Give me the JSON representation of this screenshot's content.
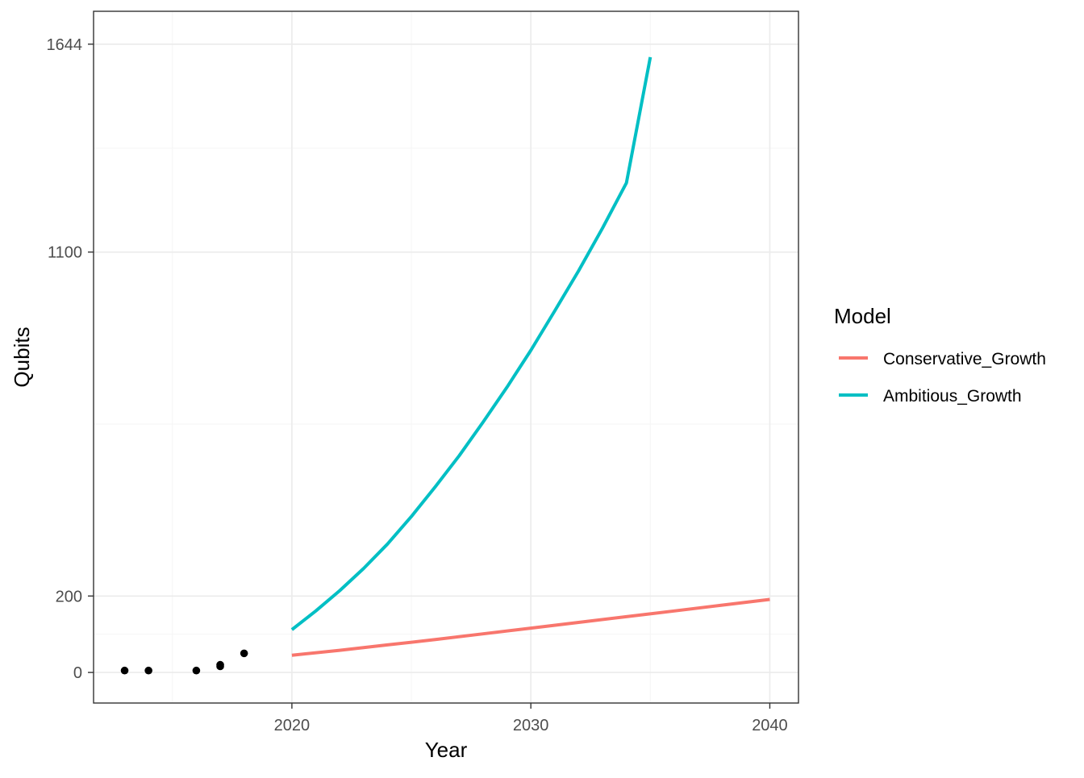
{
  "chart_data": {
    "type": "line",
    "title": "",
    "xlabel": "Year",
    "ylabel": "Qubits",
    "xlim": [
      2011.7,
      2041.2
    ],
    "ylim": [
      -80,
      1730
    ],
    "x_ticks": [
      2020,
      2030,
      2040
    ],
    "y_ticks": [
      0,
      200,
      1100,
      1644
    ],
    "x_minor_ticks": [
      2015,
      2025,
      2035
    ],
    "y_minor_ticks": [
      100,
      650,
      1372
    ],
    "grid": true,
    "legend": {
      "title": "Model",
      "position": "right",
      "entries": [
        "Conservative_Growth",
        "Ambitious_Growth"
      ]
    },
    "colors": {
      "Conservative_Growth": "#F8766D",
      "Ambitious_Growth": "#00BFC4",
      "points": "#000000",
      "panel_border": "#333333",
      "grid_major": "#ebebeb",
      "grid_minor": "#f5f5f5"
    },
    "series": [
      {
        "name": "Conservative_Growth",
        "kind": "line",
        "x": [
          2020,
          2022,
          2024,
          2026,
          2028,
          2030,
          2032,
          2034,
          2036,
          2038,
          2040
        ],
        "y": [
          45,
          58,
          72,
          86,
          101,
          116,
          131,
          146,
          161,
          176,
          191
        ]
      },
      {
        "name": "Ambitious_Growth",
        "kind": "line",
        "x": [
          2020,
          2021,
          2022,
          2023,
          2024,
          2025,
          2026,
          2027,
          2028,
          2029,
          2030,
          2031,
          2032,
          2033,
          2034,
          2035
        ],
        "y": [
          112,
          161,
          214,
          272,
          336,
          408,
          486,
          567,
          655,
          746,
          843,
          946,
          1051,
          1163,
          1281,
          1610
        ]
      },
      {
        "name": "",
        "kind": "points",
        "x": [
          2013,
          2014,
          2016,
          2017,
          2017,
          2018
        ],
        "y": [
          5,
          5,
          5,
          16,
          20,
          50
        ]
      }
    ]
  }
}
